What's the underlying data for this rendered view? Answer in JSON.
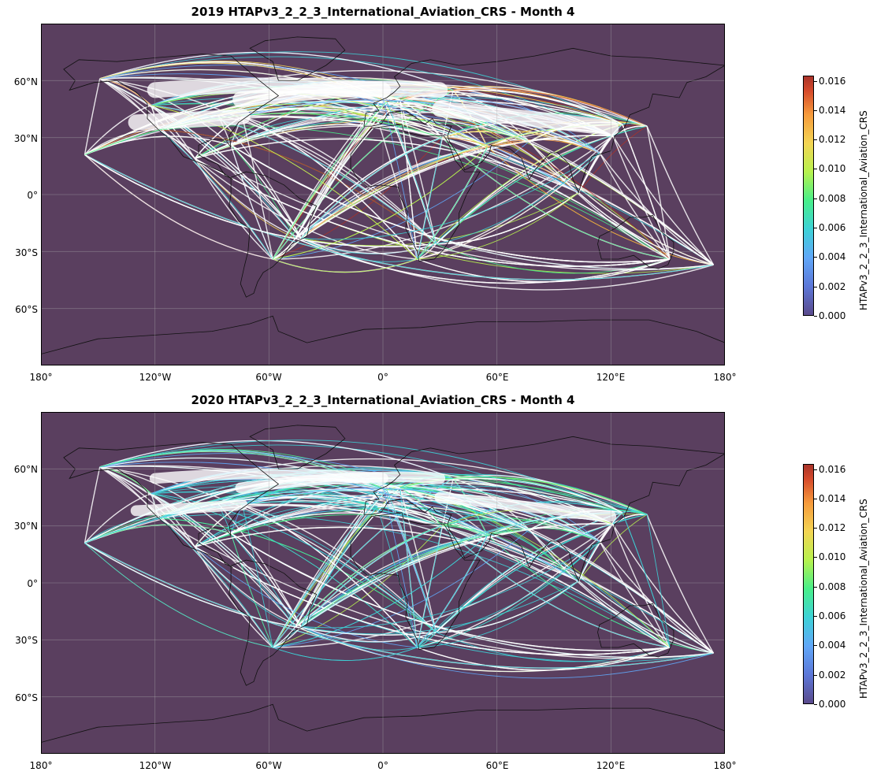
{
  "panels": [
    {
      "title": "2019 HTAPv3_2_2_3_International_Aviation_CRS - Month 4",
      "colorbar_label": "HTAPv3_2_2_3_International_Aviation_CRS",
      "intensity": 1.0
    },
    {
      "title": "2020 HTAPv3_2_2_3_International_Aviation_CRS - Month 4",
      "colorbar_label": "HTAPv3_2_2_3_International_Aviation_CRS",
      "intensity": 0.55
    }
  ],
  "x_ticks": [
    "180°",
    "120°W",
    "60°W",
    "0°",
    "60°E",
    "120°E",
    "180°"
  ],
  "y_ticks": [
    "60°N",
    "30°N",
    "0°",
    "30°S",
    "60°S"
  ],
  "colorbar_ticks": [
    "0.000",
    "0.002",
    "0.004",
    "0.006",
    "0.008",
    "0.010",
    "0.012",
    "0.014",
    "0.016"
  ],
  "colors": {
    "ocean_background": "#5a3f5f",
    "colormap": [
      "#5a4a8c",
      "#60a7f8",
      "#3dd2d7",
      "#48ef8a",
      "#b7f24e",
      "#f4d553",
      "#f69a3b",
      "#a9332a"
    ]
  }
}
